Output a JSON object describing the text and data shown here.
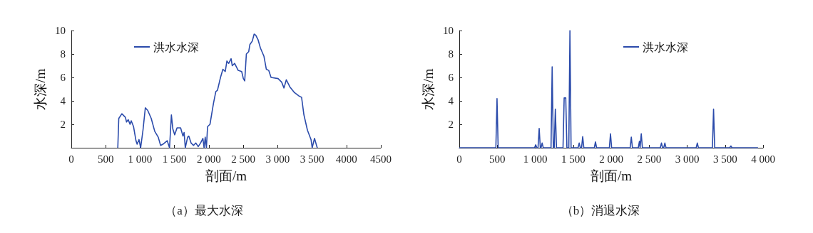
{
  "chart_data": [
    {
      "type": "line",
      "title": "（a）最大水深",
      "xlabel": "剖面/m",
      "ylabel": "水深/m",
      "xlim": [
        0,
        4500
      ],
      "ylim": [
        0,
        10
      ],
      "xticks": [
        0,
        500,
        {
          "value": 1000,
          "label": "1 000"
        },
        {
          "value": 1500,
          "label": "1 500"
        },
        {
          "value": 2000,
          "label": "2 000"
        },
        {
          "value": 2500,
          "label": "2 500"
        },
        {
          "value": 3000,
          "label": "3 000"
        },
        {
          "value": 3500,
          "label": "3 500"
        },
        4000,
        4500
      ],
      "yticks": [
        2,
        4,
        6,
        8,
        10
      ],
      "grid": false,
      "legend": "top left",
      "marker": "none",
      "line_style": "solid",
      "series": [
        {
          "name": "洪水水深",
          "color": "#2b4bab",
          "x": [
            676,
            690,
            735,
            786,
            803,
            827,
            854,
            871,
            905,
            940,
            957,
            984,
            1008,
            1042,
            1076,
            1110,
            1162,
            1213,
            1264,
            1298,
            1332,
            1394,
            1428,
            1455,
            1476,
            1503,
            1537,
            1589,
            1623,
            1640,
            1657,
            1691,
            1708,
            1742,
            1776,
            1811,
            1845,
            1879,
            1913,
            1930,
            1947,
            1964,
            1981,
            2016,
            2067,
            2101,
            2125,
            2169,
            2204,
            2238,
            2262,
            2289,
            2323,
            2340,
            2374,
            2426,
            2477,
            2501,
            2521,
            2545,
            2579,
            2596,
            2631,
            2658,
            2682,
            2716,
            2750,
            2801,
            2835,
            2870,
            2904,
            3006,
            3058,
            3092,
            3126,
            3177,
            3245,
            3314,
            3348,
            3382,
            3433,
            3485,
            3502,
            3536,
            3570,
            3577
          ],
          "values": [
            0,
            2.5,
            2.9,
            2.6,
            2.2,
            2.4,
            2.0,
            2.3,
            1.8,
            0.6,
            0.3,
            0.7,
            0,
            1.5,
            3.4,
            3.2,
            2.5,
            1.4,
            0.9,
            0.2,
            0.3,
            0.6,
            0,
            2.8,
            1.6,
            1.1,
            1.7,
            1.7,
            1.0,
            1.3,
            0,
            0.9,
            1.0,
            0.4,
            0.2,
            0.4,
            0.1,
            0.4,
            0.8,
            0,
            0.9,
            0,
            1.8,
            2.0,
            3.8,
            4.8,
            4.9,
            6.0,
            6.7,
            6.5,
            7.4,
            7.2,
            7.6,
            7.0,
            7.2,
            6.6,
            6.5,
            5.9,
            5.7,
            8.0,
            8.2,
            8.8,
            9.1,
            9.7,
            9.6,
            9.2,
            8.5,
            7.8,
            6.7,
            6.6,
            6.0,
            5.9,
            5.6,
            5.1,
            5.8,
            5.2,
            4.7,
            4.4,
            4.3,
            2.8,
            1.5,
            0.7,
            0,
            0.8,
            0.1,
            0
          ]
        }
      ]
    },
    {
      "type": "line",
      "title": "（b）消退水深",
      "xlabel": "剖面/m",
      "ylabel": "水深/m",
      "xlim": [
        0,
        4000
      ],
      "ylim": [
        0,
        10
      ],
      "xticks": [
        0,
        500,
        {
          "value": 1000,
          "label": "1 000"
        },
        {
          "value": 1500,
          "label": "1 500"
        },
        {
          "value": 2000,
          "label": "2 000"
        },
        {
          "value": 2500,
          "label": "2 500"
        },
        {
          "value": 3000,
          "label": "3 000"
        },
        {
          "value": 3500,
          "label": "3 500"
        },
        {
          "value": 4000,
          "label": "4 000"
        }
      ],
      "yticks": [
        2,
        4,
        6,
        8,
        10
      ],
      "grid": false,
      "legend": "top right",
      "marker": "none",
      "line_style": "solid",
      "series": [
        {
          "name": "洪水水深",
          "color": "#2b4bab",
          "x": [
            0,
            482,
            497,
            512,
            991,
            1006,
            1021,
            1037,
            1052,
            1067,
            1076,
            1091,
            1106,
            1208,
            1223,
            1238,
            1250,
            1265,
            1280,
            1366,
            1381,
            1402,
            1417,
            1442,
            1457,
            1472,
            1564,
            1579,
            1594,
            1610,
            1625,
            1640,
            1778,
            1793,
            1808,
            1976,
            1991,
            2006,
            2250,
            2265,
            2280,
            2357,
            2372,
            2381,
            2396,
            2411,
            2647,
            2662,
            2677,
            2692,
            2707,
            2722,
            3119,
            3134,
            3149,
            3333,
            3348,
            3363,
            3561,
            3576,
            3591,
            3933
          ],
          "values": [
            0,
            0,
            4.2,
            0,
            0,
            0.25,
            0,
            0,
            1.65,
            0,
            0,
            0.4,
            0,
            0,
            6.9,
            0,
            0,
            3.3,
            0,
            0,
            4.25,
            4.25,
            0,
            0,
            10,
            0,
            0,
            0.4,
            0,
            0,
            0.95,
            0,
            0,
            0.5,
            0,
            0,
            1.2,
            0,
            0,
            0.9,
            0,
            0,
            0.55,
            0,
            1.2,
            0,
            0,
            0.4,
            0,
            0,
            0.4,
            0,
            0,
            0.4,
            0,
            0,
            3.3,
            0,
            0,
            0.15,
            0,
            0
          ]
        }
      ]
    }
  ]
}
